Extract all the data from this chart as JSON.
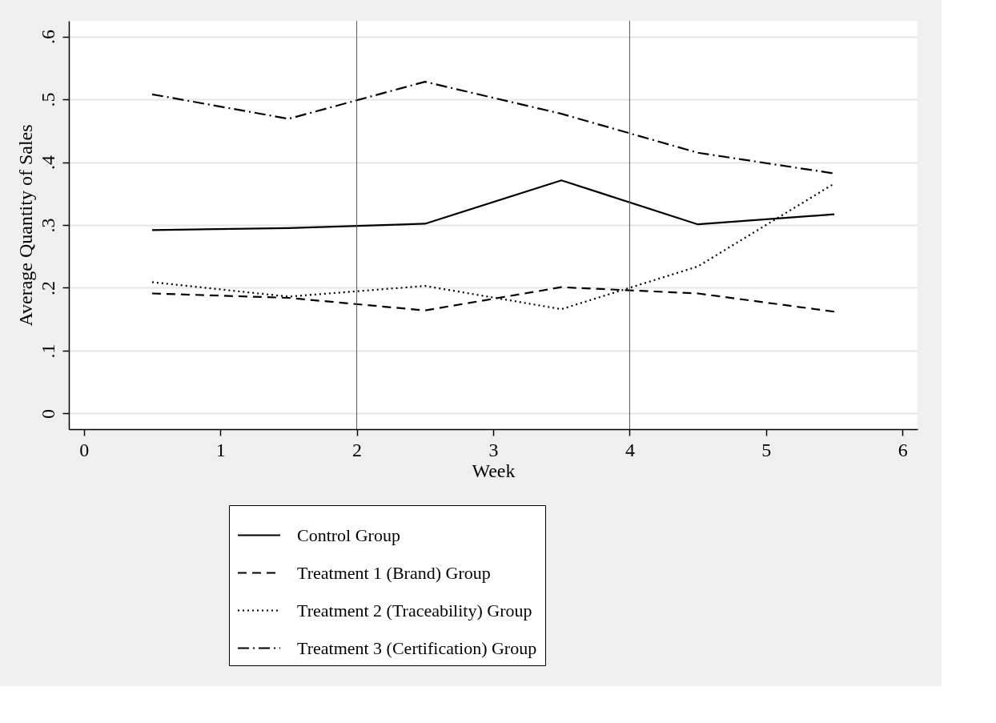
{
  "chart_data": {
    "type": "line",
    "xlabel": "Week",
    "ylabel": "Average Quantity of Sales",
    "x": [
      0.5,
      1.5,
      2.5,
      3.5,
      4.5,
      5.5
    ],
    "series": [
      {
        "name": "Control Group",
        "color": "#000000",
        "line_style": "solid",
        "values": [
          0.292,
          0.295,
          0.302,
          0.371,
          0.301,
          0.317
        ]
      },
      {
        "name": "Treatment 1 (Brand) Group",
        "color": "#000000",
        "line_style": "dashed",
        "values": [
          0.191,
          0.184,
          0.164,
          0.201,
          0.191,
          0.162
        ]
      },
      {
        "name": "Treatment 2 (Traceability) Group",
        "color": "#000000",
        "line_style": "dotted",
        "values": [
          0.209,
          0.186,
          0.203,
          0.166,
          0.234,
          0.366
        ]
      },
      {
        "name": "Treatment 3 (Certification) Group",
        "color": "#000000",
        "line_style": "dashdot",
        "values": [
          0.508,
          0.469,
          0.528,
          0.477,
          0.415,
          0.382
        ]
      }
    ],
    "xlim": [
      -0.11,
      6.11
    ],
    "ylim": [
      -0.025,
      0.625
    ],
    "xticks": [
      0,
      1,
      2,
      3,
      4,
      5,
      6
    ],
    "yticks": [
      0,
      {
        "value": 0.1,
        "label": ".1"
      },
      {
        "value": 0.2,
        "label": ".2"
      },
      {
        "value": 0.3,
        "label": ".3"
      },
      {
        "value": 0.4,
        "label": ".4"
      },
      {
        "value": 0.5,
        "label": ".5"
      },
      {
        "value": 0.6,
        "label": ".6"
      }
    ],
    "ref_lines": [
      {
        "axis": "x",
        "value": 2,
        "color": "#555555"
      },
      {
        "axis": "x",
        "value": 4,
        "color": "#555555"
      }
    ],
    "grid": "y",
    "legend": "bottom",
    "marker": "none"
  }
}
